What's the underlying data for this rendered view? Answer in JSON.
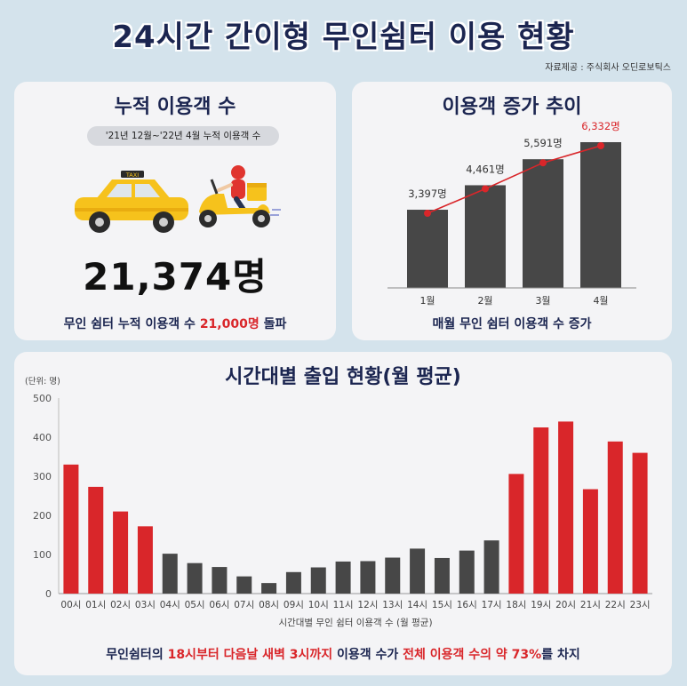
{
  "header": {
    "title": "24시간 간이형 무인쉼터 이용 현황",
    "source": "자료제공 : 주식회사 오딘로보틱스"
  },
  "cumulative": {
    "title": "누적 이용객 수",
    "period": "'21년 12월~'22년 4월 누적 이용객 수",
    "total": "21,374명",
    "caption_prefix": "무인 쉼터 누적 이용객 수 ",
    "caption_highlight": "21,000명",
    "caption_suffix": " 돌파",
    "illustration_icons": [
      "taxi-icon",
      "delivery-scooter-icon"
    ],
    "taxi_sign": "TAXI"
  },
  "colors": {
    "navy": "#1b2550",
    "red": "#d9262a",
    "dark_bar": "#474747",
    "taxi": "#f6c21c"
  },
  "chart_data": [
    {
      "type": "bar",
      "title": "이용객 증가 추이",
      "categories": [
        "1월",
        "2월",
        "3월",
        "4월"
      ],
      "values": [
        3397,
        4461,
        5591,
        6332
      ],
      "value_labels": [
        "3,397명",
        "4,461명",
        "5,591명",
        "6,332명"
      ],
      "overlay_line": true,
      "caption": "매월 무인 쉼터 이용객 수 증가"
    },
    {
      "type": "bar",
      "title": "시간대별 출입 현황(월 평균)",
      "unit_label": "(단위: 명)",
      "xlabel": "시간대별 무인 쉼터 이용객 수 (월 평균)",
      "ylim": [
        0,
        500
      ],
      "yticks": [
        "0",
        "100",
        "200",
        "300",
        "400",
        "500"
      ],
      "categories": [
        "00시",
        "01시",
        "02시",
        "03시",
        "04시",
        "05시",
        "06시",
        "07시",
        "08시",
        "09시",
        "10시",
        "11시",
        "12시",
        "13시",
        "14시",
        "15시",
        "16시",
        "17시",
        "18시",
        "19시",
        "20시",
        "21시",
        "22시",
        "23시"
      ],
      "values": [
        330,
        273,
        210,
        172,
        102,
        78,
        68,
        44,
        27,
        55,
        67,
        82,
        83,
        92,
        115,
        91,
        110,
        136,
        306,
        425,
        440,
        267,
        389,
        360
      ],
      "highlight": [
        true,
        true,
        true,
        true,
        false,
        false,
        false,
        false,
        false,
        false,
        false,
        false,
        false,
        false,
        false,
        false,
        false,
        false,
        true,
        true,
        true,
        true,
        true,
        true
      ],
      "caption_parts": [
        "무인쉼터의 ",
        "18시부터 다음날 새벽 3시까지",
        " 이용객 수가 ",
        "전체 이용객 수의 약 73%",
        "를 차지"
      ]
    }
  ]
}
